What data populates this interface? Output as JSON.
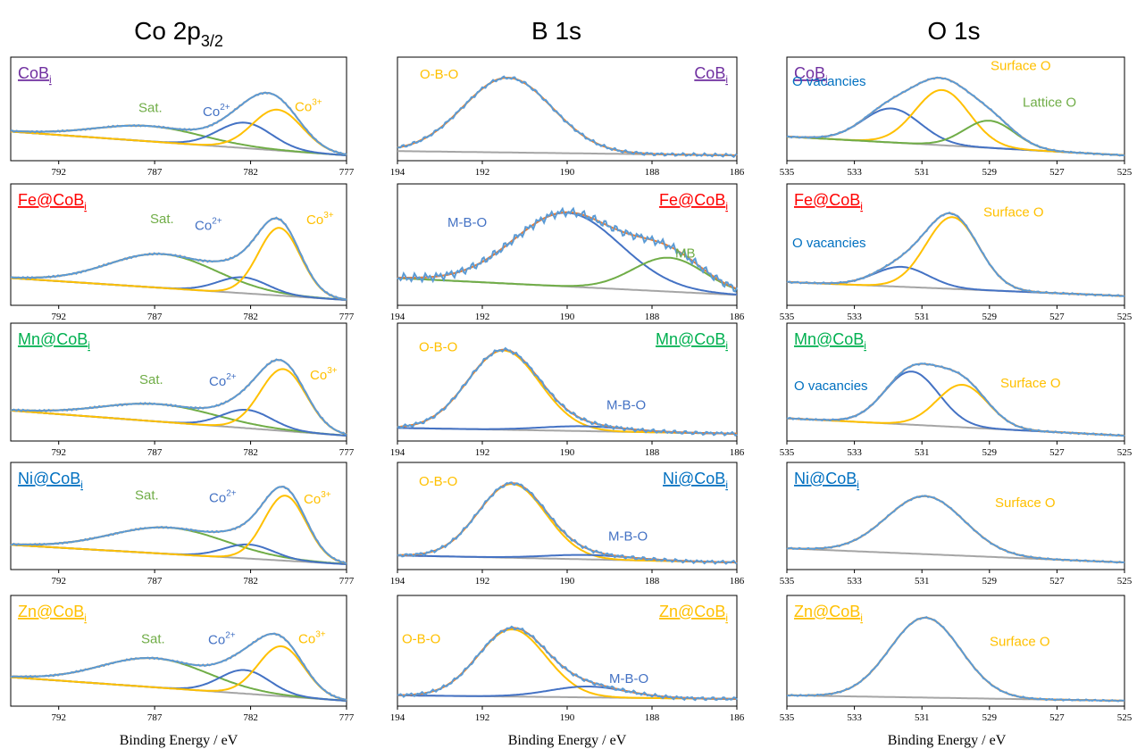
{
  "column_titles": [
    "Co 2p3/2",
    "B 1s",
    "O 1s"
  ],
  "chart_data": {
    "type": "line",
    "xlabel": "Binding Energy / eV",
    "colors": {
      "raw": "#5B9BD5",
      "envelope": "#ED7D31",
      "background": "#A5A5A5",
      "blue": "#4472C4",
      "yellow": "#FFC000",
      "green": "#70AD47",
      "purple": "#7030A0",
      "red": "#FF0000",
      "mngreen": "#00B050",
      "niblue": "#0070C0"
    },
    "columns": [
      {
        "region": "Co 2p3/2",
        "xlim": [
          794.5,
          777
        ],
        "xticks": [
          792,
          787,
          782,
          777
        ],
        "raw_wiggle": 0.0,
        "components": [
          {
            "label": "Sat.",
            "color": "green",
            "center": 787.3
          },
          {
            "label": "Co2+",
            "color": "blue",
            "center": 782.5
          },
          {
            "label": "Co3+",
            "color": "yellow",
            "center": 780.5
          }
        ]
      },
      {
        "region": "B 1s",
        "xlim": [
          194,
          186
        ],
        "xticks": [
          194,
          192,
          190,
          188,
          186
        ],
        "components": [
          {
            "label": "O-B-O",
            "color": "yellow",
            "center": 191.4
          },
          {
            "label": "M-B-O",
            "color": "blue",
            "center": 190.0
          },
          {
            "label": "MB",
            "color": "green",
            "center": 187.8
          }
        ]
      },
      {
        "region": "O 1s",
        "xlim": [
          535,
          525
        ],
        "xticks": [
          535,
          533,
          531,
          529,
          527,
          525
        ],
        "components": [
          {
            "label": "O vacancies",
            "color": "blue",
            "center": 531.8
          },
          {
            "label": "Surface O",
            "color": "yellow",
            "center": 530.3
          },
          {
            "label": "Lattice O",
            "color": "green",
            "center": 529.0
          }
        ]
      }
    ],
    "samples": [
      {
        "name": "CoB",
        "sub": "i",
        "color": "purple"
      },
      {
        "name": "Fe@CoB",
        "sub": "i",
        "color": "red"
      },
      {
        "name": "Mn@CoB",
        "sub": "i",
        "color": "mngreen"
      },
      {
        "name": "Ni@CoB",
        "sub": "i",
        "color": "niblue"
      },
      {
        "name": "Zn@CoB",
        "sub": "i",
        "color": "yellow"
      }
    ],
    "panels": [
      [
        {
          "bg": [
            0.28,
            0.0
          ],
          "peaks": [
            {
              "c": 787.3,
              "h": 0.18,
              "w": 2.8,
              "col": "green"
            },
            {
              "c": 782.3,
              "h": 0.3,
              "w": 1.4,
              "col": "blue"
            },
            {
              "c": 780.6,
              "h": 0.48,
              "w": 1.3,
              "col": "yellow"
            }
          ]
        },
        {
          "bg": [
            0.22,
            0.0
          ],
          "peaks": [
            {
              "c": 786.6,
              "h": 0.34,
              "w": 2.8,
              "col": "green"
            },
            {
              "c": 782.4,
              "h": 0.16,
              "w": 1.3,
              "col": "blue"
            },
            {
              "c": 780.5,
              "h": 0.68,
              "w": 1.1,
              "col": "yellow"
            }
          ]
        },
        {
          "bg": [
            0.26,
            0.0
          ],
          "peaks": [
            {
              "c": 786.8,
              "h": 0.18,
              "w": 3.0,
              "col": "green"
            },
            {
              "c": 782.2,
              "h": 0.19,
              "w": 1.3,
              "col": "blue"
            },
            {
              "c": 780.3,
              "h": 0.64,
              "w": 1.2,
              "col": "yellow"
            }
          ]
        },
        {
          "bg": [
            0.22,
            0.0
          ],
          "peaks": [
            {
              "c": 786.3,
              "h": 0.3,
              "w": 3.0,
              "col": "green"
            },
            {
              "c": 782.1,
              "h": 0.16,
              "w": 1.3,
              "col": "blue"
            },
            {
              "c": 780.2,
              "h": 0.74,
              "w": 1.1,
              "col": "yellow"
            }
          ]
        },
        {
          "bg": [
            0.26,
            0.0
          ],
          "peaks": [
            {
              "c": 787.0,
              "h": 0.32,
              "w": 2.8,
              "col": "green"
            },
            {
              "c": 782.3,
              "h": 0.26,
              "w": 1.3,
              "col": "blue"
            },
            {
              "c": 780.4,
              "h": 0.55,
              "w": 1.2,
              "col": "yellow"
            }
          ]
        }
      ],
      [
        {
          "bg": [
            0.05,
            0.0
          ],
          "peaks": [
            {
              "c": 191.4,
              "h": 0.88,
              "w": 1.05,
              "col": "yellow"
            }
          ]
        },
        {
          "bg": [
            0.22,
            0.05
          ],
          "peaks": [
            {
              "c": 190.0,
              "h": 0.74,
              "w": 1.25,
              "col": "blue"
            },
            {
              "c": 187.6,
              "h": 0.34,
              "w": 0.85,
              "col": "green"
            }
          ]
        },
        {
          "bg": [
            0.08,
            0.02
          ],
          "peaks": [
            {
              "c": 191.5,
              "h": 0.82,
              "w": 0.85,
              "col": "yellow"
            },
            {
              "c": 189.6,
              "h": 0.05,
              "w": 1.0,
              "col": "blue"
            }
          ]
        },
        {
          "bg": [
            0.1,
            0.02
          ],
          "peaks": [
            {
              "c": 191.3,
              "h": 0.84,
              "w": 0.8,
              "col": "yellow"
            },
            {
              "c": 189.5,
              "h": 0.05,
              "w": 1.0,
              "col": "blue"
            }
          ]
        },
        {
          "bg": [
            0.06,
            0.02
          ],
          "peaks": [
            {
              "c": 191.3,
              "h": 0.74,
              "w": 0.8,
              "col": "yellow"
            },
            {
              "c": 189.5,
              "h": 0.12,
              "w": 0.9,
              "col": "blue"
            }
          ]
        }
      ],
      [
        {
          "bg": [
            0.22,
            0.0
          ],
          "peaks": [
            {
              "c": 531.9,
              "h": 0.4,
              "w": 0.85,
              "col": "blue"
            },
            {
              "c": 530.4,
              "h": 0.65,
              "w": 0.8,
              "col": "yellow"
            },
            {
              "c": 529.0,
              "h": 0.32,
              "w": 0.75,
              "col": "green"
            }
          ]
        },
        {
          "bg": [
            0.18,
            0.04
          ],
          "peaks": [
            {
              "c": 531.6,
              "h": 0.2,
              "w": 0.8,
              "col": "blue"
            },
            {
              "c": 530.1,
              "h": 0.72,
              "w": 0.78,
              "col": "yellow"
            }
          ]
        },
        {
          "bg": [
            0.18,
            0.0
          ],
          "peaks": [
            {
              "c": 531.3,
              "h": 0.55,
              "w": 0.8,
              "col": "blue"
            },
            {
              "c": 529.8,
              "h": 0.44,
              "w": 0.75,
              "col": "yellow"
            }
          ]
        },
        {
          "bg": [
            0.18,
            0.02
          ],
          "peaks": [
            {
              "c": 530.9,
              "h": 0.66,
              "w": 1.15,
              "col": "yellow"
            }
          ]
        },
        {
          "bg": [
            0.06,
            0.0
          ],
          "peaks": [
            {
              "c": 530.9,
              "h": 0.88,
              "w": 1.05,
              "col": "yellow"
            }
          ]
        }
      ]
    ]
  },
  "annotations": [
    [
      [
        {
          "t": "Sat.",
          "col": "green"
        },
        {
          "t": "Co",
          "sup": "2+",
          "col": "blue"
        },
        {
          "t": "Co",
          "sup": "3+",
          "col": "yellow"
        }
      ],
      [
        {
          "t": "Sat.",
          "col": "green"
        },
        {
          "t": "Co",
          "sup": "2+",
          "col": "blue"
        },
        {
          "t": "Co",
          "sup": "3+",
          "col": "yellow"
        }
      ],
      [
        {
          "t": "Sat.",
          "col": "green"
        },
        {
          "t": "Co",
          "sup": "2+",
          "col": "blue"
        },
        {
          "t": "Co",
          "sup": "3+",
          "col": "yellow"
        }
      ],
      [
        {
          "t": "Sat.",
          "col": "green"
        },
        {
          "t": "Co",
          "sup": "2+",
          "col": "blue"
        },
        {
          "t": "Co",
          "sup": "3+",
          "col": "yellow"
        }
      ],
      [
        {
          "t": "Sat.",
          "col": "green"
        },
        {
          "t": "Co",
          "sup": "2+",
          "col": "blue"
        },
        {
          "t": "Co",
          "sup": "3+",
          "col": "yellow"
        }
      ]
    ],
    [
      [
        {
          "t": "O-B-O",
          "col": "yellow"
        }
      ],
      [
        {
          "t": "M-B-O",
          "col": "blue"
        },
        {
          "t": "MB",
          "col": "green"
        }
      ],
      [
        {
          "t": "O-B-O",
          "col": "yellow"
        },
        {
          "t": "M-B-O",
          "col": "blue"
        }
      ],
      [
        {
          "t": "O-B-O",
          "col": "yellow"
        },
        {
          "t": "M-B-O",
          "col": "blue"
        }
      ],
      [
        {
          "t": "O-B-O",
          "col": "yellow"
        },
        {
          "t": "M-B-O",
          "col": "blue"
        }
      ]
    ],
    [
      [
        {
          "t": "O vacancies",
          "col": "niblue"
        },
        {
          "t": "Surface O",
          "col": "yellow"
        },
        {
          "t": "Lattice O",
          "col": "green"
        }
      ],
      [
        {
          "t": "O vacancies",
          "col": "niblue"
        },
        {
          "t": "Surface O",
          "col": "yellow"
        }
      ],
      [
        {
          "t": "O vacancies",
          "col": "niblue"
        },
        {
          "t": "Surface O",
          "col": "yellow"
        }
      ],
      [
        {
          "t": "Surface O",
          "col": "yellow"
        }
      ],
      [
        {
          "t": "Surface O",
          "col": "yellow"
        }
      ]
    ]
  ]
}
